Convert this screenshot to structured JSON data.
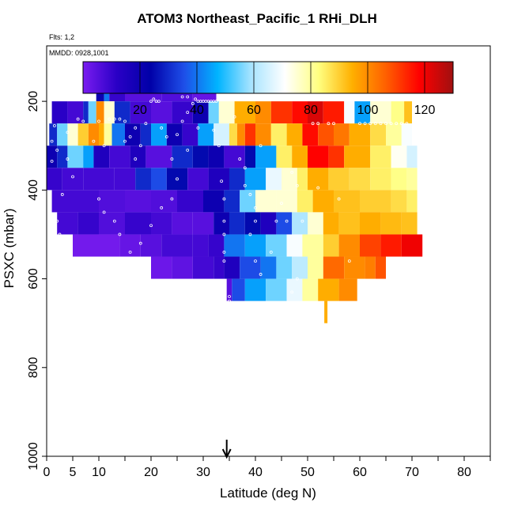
{
  "chart_data": {
    "type": "heatmap",
    "title": "ATOM3 Northeast_Pacific_1 RHi_DLH",
    "annotations": {
      "flights": "Flts: 1,2",
      "dates": "MMDD: 0928,1001"
    },
    "xlabel": "Latitude (deg N)",
    "ylabel": "PSXC (mbar)",
    "xlim": [
      0,
      85
    ],
    "ylim": [
      1000,
      75
    ],
    "x_ticks": [
      0,
      5,
      10,
      20,
      30,
      40,
      50,
      60,
      70,
      80
    ],
    "x_minor_ticks": [
      15,
      25,
      35,
      45,
      55,
      65,
      75,
      85
    ],
    "y_ticks": [
      200,
      400,
      600,
      800,
      1000
    ],
    "marker": {
      "label": "arrow",
      "x": 34.5
    },
    "colorbar": {
      "range": [
        0,
        130
      ],
      "ticks": [
        20,
        40,
        60,
        80,
        100,
        120
      ],
      "colors": [
        "#7a1cf0",
        "#2a00c6",
        "#0000a8",
        "#1e4ee8",
        "#00b4ff",
        "#a8e4ff",
        "#ffffff",
        "#ffff80",
        "#ffb000",
        "#ff6000",
        "#ff0000",
        "#a01010"
      ]
    },
    "rows": [
      {
        "p": 175,
        "x0": 9.5,
        "x1": 32.5,
        "segments": [
          [
            9.5,
            20
          ],
          [
            11,
            40
          ],
          [
            12,
            10
          ],
          [
            15,
            5
          ],
          [
            22,
            6
          ],
          [
            28,
            3
          ]
        ]
      },
      {
        "p": 225,
        "x0": 1,
        "x1": 70,
        "segments": [
          [
            1,
            12
          ],
          [
            4,
            8
          ],
          [
            7,
            30
          ],
          [
            8,
            55
          ],
          [
            9.5,
            100
          ],
          [
            11,
            75
          ],
          [
            13,
            30
          ],
          [
            16,
            8
          ],
          [
            20,
            5
          ],
          [
            24,
            10
          ],
          [
            28,
            20
          ],
          [
            31,
            55
          ],
          [
            33,
            75
          ],
          [
            36,
            95
          ],
          [
            40,
            100
          ],
          [
            43,
            112
          ],
          [
            47,
            117
          ],
          [
            50,
            123
          ],
          [
            53,
            115
          ],
          [
            57,
            70
          ],
          [
            59,
            45
          ],
          [
            62,
            75
          ],
          [
            66,
            82
          ],
          [
            68.5,
            92
          ]
        ]
      },
      {
        "p": 275,
        "x0": 0.5,
        "x1": 70,
        "segments": [
          [
            0.5,
            30
          ],
          [
            2,
            55
          ],
          [
            4,
            75
          ],
          [
            6,
            90
          ],
          [
            8,
            100
          ],
          [
            10,
            95
          ],
          [
            11,
            80
          ],
          [
            12.5,
            40
          ],
          [
            15,
            20
          ],
          [
            18,
            30
          ],
          [
            20,
            45
          ],
          [
            23,
            20
          ],
          [
            26,
            10
          ],
          [
            29,
            45
          ],
          [
            32,
            65
          ],
          [
            35,
            88
          ],
          [
            36.5,
            100
          ],
          [
            38,
            112
          ],
          [
            40,
            100
          ],
          [
            43,
            85
          ],
          [
            46,
            95
          ],
          [
            49,
            117
          ],
          [
            52,
            108
          ],
          [
            55,
            103
          ],
          [
            58,
            95
          ],
          [
            62,
            88
          ],
          [
            65,
            80
          ],
          [
            68,
            70
          ]
        ]
      },
      {
        "p": 325,
        "x0": 0,
        "x1": 71,
        "segments": [
          [
            0,
            20
          ],
          [
            2,
            30
          ],
          [
            4,
            55
          ],
          [
            7,
            45
          ],
          [
            9,
            15
          ],
          [
            12,
            8
          ],
          [
            16,
            15
          ],
          [
            19,
            5
          ],
          [
            24,
            30
          ],
          [
            28,
            25
          ],
          [
            31,
            20
          ],
          [
            34,
            8
          ],
          [
            38,
            25
          ],
          [
            40,
            45
          ],
          [
            44,
            85
          ],
          [
            47,
            95
          ],
          [
            50,
            118
          ],
          [
            54,
            112
          ],
          [
            57,
            95
          ],
          [
            62,
            85
          ],
          [
            66,
            72
          ],
          [
            69,
            65
          ]
        ]
      },
      {
        "p": 375,
        "x0": 0,
        "x1": 71,
        "segments": [
          [
            0,
            10
          ],
          [
            3,
            8
          ],
          [
            7,
            8
          ],
          [
            10,
            8
          ],
          [
            13,
            8
          ],
          [
            17,
            30
          ],
          [
            20,
            35
          ],
          [
            23,
            25
          ],
          [
            27,
            8
          ],
          [
            31,
            15
          ],
          [
            35,
            30
          ],
          [
            38,
            45
          ],
          [
            42,
            68
          ],
          [
            45,
            75
          ],
          [
            48,
            85
          ],
          [
            50,
            95
          ],
          [
            54,
            90
          ],
          [
            58,
            88
          ],
          [
            62,
            85
          ],
          [
            66,
            82
          ],
          [
            69,
            80
          ]
        ]
      },
      {
        "p": 425,
        "x0": 1,
        "x1": 71,
        "segments": [
          [
            1,
            8
          ],
          [
            5,
            8
          ],
          [
            10,
            6
          ],
          [
            15,
            5
          ],
          [
            20,
            6
          ],
          [
            25,
            10
          ],
          [
            30,
            20
          ],
          [
            34,
            30
          ],
          [
            37,
            55
          ],
          [
            40,
            75
          ],
          [
            44,
            75
          ],
          [
            48,
            85
          ],
          [
            51,
            95
          ],
          [
            55,
            92
          ],
          [
            60,
            90
          ],
          [
            66,
            88
          ],
          [
            69,
            85
          ]
        ]
      },
      {
        "p": 475,
        "x0": 2,
        "x1": 71,
        "segments": [
          [
            2,
            8
          ],
          [
            6,
            10
          ],
          [
            10,
            6
          ],
          [
            15,
            10
          ],
          [
            20,
            8
          ],
          [
            24,
            5
          ],
          [
            28,
            5
          ],
          [
            32,
            20
          ],
          [
            35,
            30
          ],
          [
            38,
            25
          ],
          [
            41,
            15
          ],
          [
            44,
            35
          ],
          [
            47,
            60
          ],
          [
            50,
            75
          ],
          [
            53,
            95
          ],
          [
            56,
            92
          ],
          [
            60,
            95
          ],
          [
            64,
            93
          ],
          [
            68,
            92
          ]
        ]
      },
      {
        "p": 525,
        "x0": 5,
        "x1": 72,
        "segments": [
          [
            5,
            1
          ],
          [
            10,
            1
          ],
          [
            14,
            3
          ],
          [
            18,
            5
          ],
          [
            22,
            8
          ],
          [
            28,
            8
          ],
          [
            31,
            10
          ],
          [
            34,
            40
          ],
          [
            38,
            45
          ],
          [
            42,
            55
          ],
          [
            46,
            70
          ],
          [
            49,
            80
          ],
          [
            53,
            90
          ],
          [
            56,
            100
          ],
          [
            60,
            110
          ],
          [
            64,
            115
          ],
          [
            68,
            120
          ]
        ]
      },
      {
        "p": 575,
        "x0": 20,
        "x1": 65,
        "segments": [
          [
            20,
            2
          ],
          [
            24,
            4
          ],
          [
            28,
            8
          ],
          [
            32,
            10
          ],
          [
            34,
            15
          ],
          [
            37,
            35
          ],
          [
            41,
            40
          ],
          [
            44,
            55
          ],
          [
            47,
            62
          ],
          [
            50,
            80
          ],
          [
            53,
            105
          ],
          [
            57,
            100
          ],
          [
            61,
            102
          ],
          [
            63,
            108
          ]
        ]
      },
      {
        "p": 625,
        "x0": 34.5,
        "x1": 59.5,
        "segments": [
          [
            34.5,
            5
          ],
          [
            35.5,
            35
          ],
          [
            38,
            45
          ],
          [
            42,
            55
          ],
          [
            46,
            68
          ],
          [
            49,
            80
          ],
          [
            52,
            95
          ],
          [
            56,
            100
          ]
        ]
      },
      {
        "p": 675,
        "x0": 53.2,
        "x1": 53.8,
        "segments": [
          [
            53.2,
            95
          ]
        ]
      }
    ],
    "points": [
      [
        0.5,
        230
      ],
      [
        1.5,
        255
      ],
      [
        1,
        290
      ],
      [
        2,
        310
      ],
      [
        1,
        335
      ],
      [
        4,
        270
      ],
      [
        4,
        330
      ],
      [
        5,
        370
      ],
      [
        3,
        410
      ],
      [
        2,
        470
      ],
      [
        2.5,
        500
      ],
      [
        4,
        555
      ],
      [
        6,
        240
      ],
      [
        7,
        245
      ],
      [
        9,
        290
      ],
      [
        10,
        245
      ],
      [
        10,
        420
      ],
      [
        11,
        300
      ],
      [
        12,
        240
      ],
      [
        13,
        240
      ],
      [
        14,
        240
      ],
      [
        15,
        245
      ],
      [
        15,
        290
      ],
      [
        16,
        280
      ],
      [
        17,
        260
      ],
      [
        17,
        330
      ],
      [
        18,
        300
      ],
      [
        19,
        250
      ],
      [
        20,
        200
      ],
      [
        20.5,
        195
      ],
      [
        21,
        200
      ],
      [
        21.5,
        200
      ],
      [
        22,
        260
      ],
      [
        23,
        280
      ],
      [
        24,
        330
      ],
      [
        25,
        275
      ],
      [
        26,
        245
      ],
      [
        27,
        225
      ],
      [
        28,
        205
      ],
      [
        28.5,
        195
      ],
      [
        29,
        200
      ],
      [
        29.5,
        200
      ],
      [
        30,
        200
      ],
      [
        30.5,
        200
      ],
      [
        31,
        200
      ],
      [
        31.5,
        200
      ],
      [
        32,
        200
      ],
      [
        32.5,
        200
      ],
      [
        26,
        190
      ],
      [
        27,
        190
      ],
      [
        25,
        375
      ],
      [
        24,
        420
      ],
      [
        22,
        440
      ],
      [
        20,
        480
      ],
      [
        18,
        520
      ],
      [
        16,
        540
      ],
      [
        14,
        500
      ],
      [
        13,
        470
      ],
      [
        11,
        450
      ],
      [
        27,
        310
      ],
      [
        29,
        260
      ],
      [
        32,
        265
      ],
      [
        33,
        300
      ],
      [
        33.5,
        380
      ],
      [
        34,
        420
      ],
      [
        34,
        470
      ],
      [
        34,
        500
      ],
      [
        34,
        540
      ],
      [
        34,
        560
      ],
      [
        35,
        640
      ],
      [
        35,
        650
      ],
      [
        36,
        235
      ],
      [
        37,
        330
      ],
      [
        38,
        350
      ],
      [
        38,
        390
      ],
      [
        39,
        410
      ],
      [
        40,
        440
      ],
      [
        40,
        470
      ],
      [
        41,
        300
      ],
      [
        39,
        500
      ],
      [
        40,
        560
      ],
      [
        41,
        590
      ],
      [
        43,
        540
      ],
      [
        44,
        470
      ],
      [
        45,
        430
      ],
      [
        46,
        470
      ],
      [
        47,
        360
      ],
      [
        48,
        390
      ],
      [
        49,
        470
      ],
      [
        51,
        250
      ],
      [
        52,
        250
      ],
      [
        52,
        395
      ],
      [
        54,
        250
      ],
      [
        55,
        250
      ],
      [
        56,
        420
      ],
      [
        58,
        560
      ],
      [
        60,
        250
      ],
      [
        61,
        250
      ],
      [
        62,
        250
      ],
      [
        63,
        250
      ],
      [
        64,
        250
      ],
      [
        65,
        250
      ],
      [
        66,
        250
      ],
      [
        67,
        250
      ],
      [
        68,
        250
      ],
      [
        69,
        250
      ],
      [
        47,
        630
      ],
      [
        48,
        600
      ]
    ]
  }
}
